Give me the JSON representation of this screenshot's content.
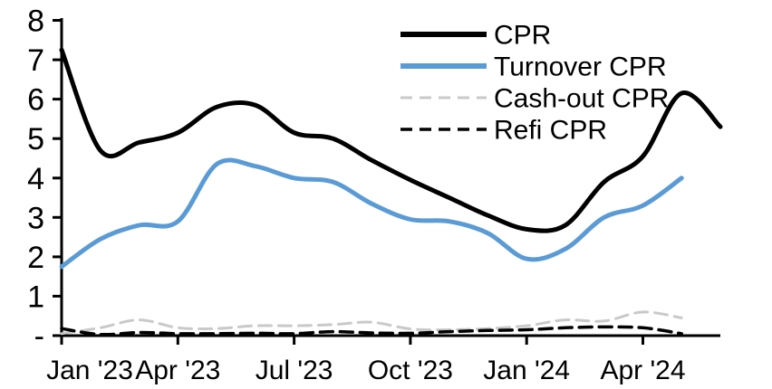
{
  "chart_data": {
    "type": "line",
    "title": "",
    "xlabel": "",
    "ylabel": "",
    "grid": "off",
    "legend_position": "top-right-inside",
    "line_style_note": "smoothed (spline) lines, no markers",
    "ylim": [
      0,
      8
    ],
    "y_ticks": [
      0,
      1,
      2,
      3,
      4,
      5,
      6,
      7,
      8
    ],
    "y_tick_labels": [
      "-",
      "1",
      "2",
      "3",
      "4",
      "5",
      "6",
      "7",
      "8"
    ],
    "x": [
      "Jan '23",
      "Feb '23",
      "Mar '23",
      "Apr '23",
      "May '23",
      "Jun '23",
      "Jul '23",
      "Aug '23",
      "Sep '23",
      "Oct '23",
      "Nov '23",
      "Dec '23",
      "Jan '24",
      "Feb '24",
      "Mar '24",
      "Apr '24",
      "May '24",
      "Jun '24"
    ],
    "x_axis_ticks": [
      "Jan '23",
      "Apr '23",
      "Jul '23",
      "Oct '23",
      "Jan '24",
      "Apr '24"
    ],
    "x_tick_month_indices": [
      0,
      3,
      6,
      9,
      12,
      15
    ],
    "series": [
      {
        "name": "CPR",
        "color": "#000000",
        "style": "solid",
        "width": 5,
        "values": [
          7.25,
          4.7,
          4.9,
          5.15,
          5.8,
          5.85,
          5.15,
          5.0,
          4.45,
          3.95,
          3.5,
          3.05,
          2.7,
          2.8,
          3.9,
          4.55,
          6.15,
          5.3
        ]
      },
      {
        "name": "Turnover CPR",
        "color": "#5B9BD5",
        "style": "solid",
        "width": 5,
        "values": [
          1.75,
          2.45,
          2.8,
          2.9,
          4.35,
          4.3,
          4.0,
          3.9,
          3.35,
          2.95,
          2.9,
          2.6,
          1.95,
          2.2,
          3.0,
          3.3,
          4.0,
          null
        ]
      },
      {
        "name": "Cash-out CPR",
        "color": "#C9C9C9",
        "style": "dashed",
        "width": 3,
        "values": [
          0.05,
          0.2,
          0.4,
          0.2,
          0.18,
          0.25,
          0.25,
          0.28,
          0.34,
          0.17,
          0.15,
          0.18,
          0.25,
          0.4,
          0.37,
          0.6,
          0.45,
          null
        ]
      },
      {
        "name": "Refi CPR",
        "color": "#000000",
        "style": "dashed",
        "width": 3.5,
        "values": [
          0.18,
          0.03,
          0.08,
          0.05,
          0.05,
          0.06,
          0.05,
          0.1,
          0.07,
          0.06,
          0.1,
          0.13,
          0.15,
          0.2,
          0.22,
          0.2,
          0.05,
          null
        ]
      }
    ]
  }
}
